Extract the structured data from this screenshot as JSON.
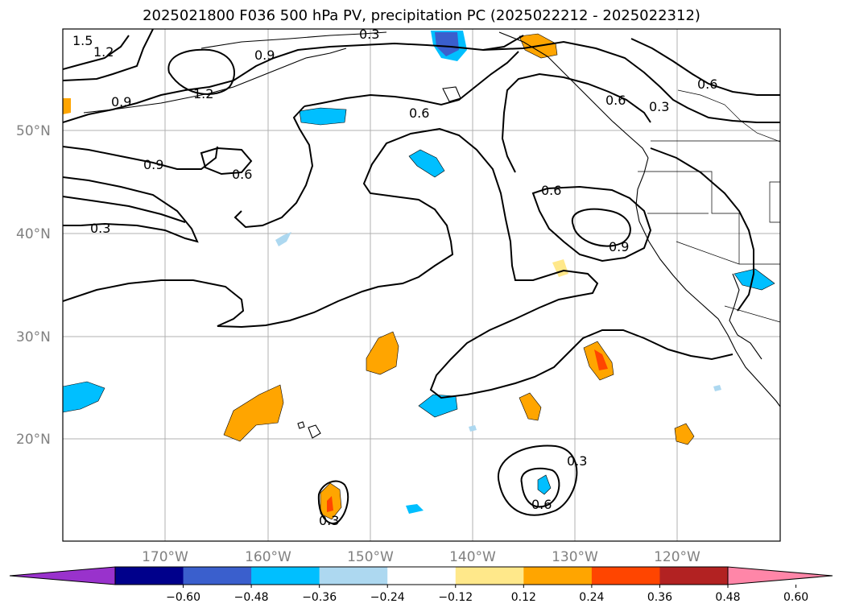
{
  "title": "2025021800 F036 500 hPa PV, precipitation PC (2025022212 - 2025022312)",
  "lat_labels": [
    "50°N",
    "40°N",
    "30°N",
    "20°N"
  ],
  "lon_labels": [
    "170°W",
    "160°W",
    "150°W",
    "140°W",
    "130°W",
    "120°W"
  ],
  "contour_labels": [
    "1.5",
    "1.2",
    "0.3",
    "0.9",
    "1.2",
    "0.9",
    "0.6",
    "0.6",
    "0.6",
    "0.3",
    "0.9",
    "0.6",
    "0.3",
    "0.9",
    "0.6",
    "0.3",
    "0.3",
    "0.6"
  ],
  "colorbar": {
    "ticks": [
      "−0.60",
      "−0.48",
      "−0.36",
      "−0.24",
      "−0.12",
      "0.12",
      "0.24",
      "0.36",
      "0.48",
      "0.60"
    ],
    "colors": [
      "#9932cc",
      "#00008b",
      "#3a5fcd",
      "#00bfff",
      "#add8f0",
      "#ffffff",
      "#ffe88a",
      "#ffa500",
      "#ff4500",
      "#b22222",
      "#ff86a8"
    ]
  }
}
